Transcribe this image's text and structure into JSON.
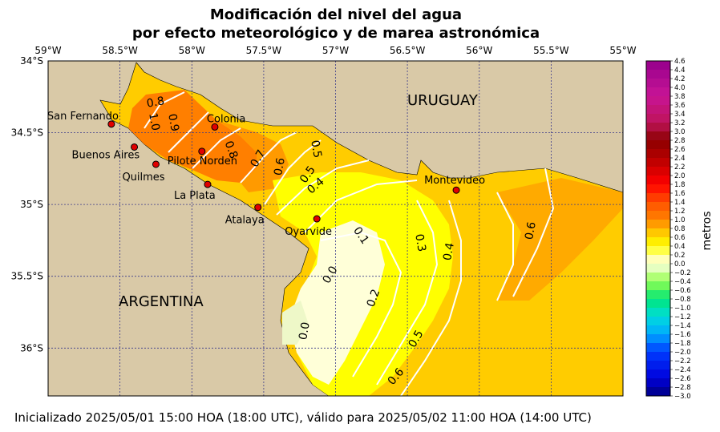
{
  "title_line1": "Modificación del nivel del agua",
  "title_line2": "por efecto meteorológico y de marea astronómica",
  "footer": "Inicializado 2025/05/01 15:00 HOA (18:00 UTC), válido para 2025/05/02 11:00 HOA (14:00 UTC)",
  "lon_ticks": [
    "59°W",
    "58.5°W",
    "58°W",
    "57.5°W",
    "57°W",
    "56.5°W",
    "56°W",
    "55.5°W",
    "55°W"
  ],
  "lat_ticks": [
    "34°S",
    "34.5°S",
    "35°S",
    "35.5°S",
    "36°S"
  ],
  "countries": {
    "uruguay": "URUGUAY",
    "argentina": "ARGENTINA"
  },
  "cities": [
    {
      "name": "San Fernando",
      "lon": -58.56,
      "lat": -34.44
    },
    {
      "name": "Buenos Aires",
      "lon": -58.4,
      "lat": -34.6
    },
    {
      "name": "Colonia",
      "lon": -57.84,
      "lat": -34.46
    },
    {
      "name": "Pilote Norden",
      "lon": -57.93,
      "lat": -34.63
    },
    {
      "name": "Quilmes",
      "lon": -58.25,
      "lat": -34.72
    },
    {
      "name": "La Plata",
      "lon": -57.89,
      "lat": -34.86
    },
    {
      "name": "Montevideo",
      "lon": -56.16,
      "lat": -34.9
    },
    {
      "name": "Atalaya",
      "lon": -57.54,
      "lat": -35.02
    },
    {
      "name": "Oyarvide",
      "lon": -57.13,
      "lat": -35.1
    }
  ],
  "contour_labels": [
    "0.8",
    "1.0",
    "0.9",
    "0.8",
    "0.7",
    "0.6",
    "0.5",
    "0.5",
    "0.4",
    "0.1",
    "0.3",
    "0.4",
    "0.6",
    "0.0",
    "0.2",
    "0.0",
    "0.5",
    "0.6"
  ],
  "colorbar": {
    "label": "metros",
    "min": -3.0,
    "max": 4.6,
    "step": 0.2,
    "tick_labels": [
      "4.6",
      "4.4",
      "4.2",
      "4.0",
      "3.8",
      "3.6",
      "3.4",
      "3.2",
      "3.0",
      "2.8",
      "2.6",
      "2.4",
      "2.2",
      "2.0",
      "1.8",
      "1.6",
      "1.4",
      "1.2",
      "1.0",
      "0.8",
      "0.6",
      "0.4",
      "0.2",
      "0.0",
      "−0.2",
      "−0.4",
      "−0.6",
      "−0.8",
      "−1.0",
      "−1.2",
      "−1.4",
      "−1.6",
      "−1.8",
      "−2.0",
      "−2.2",
      "−2.4",
      "−2.6",
      "−2.8",
      "−3.0"
    ]
  },
  "colors": {
    "land": "#d9c9a7",
    "water_low": "#ffffd8",
    "water_mid": "#ffff00",
    "water_high": "#ffcc00",
    "water_higher": "#ffaa00",
    "water_top": "#ff7f00",
    "city_marker": "#e00000",
    "grid": "#3a3a8a"
  }
}
